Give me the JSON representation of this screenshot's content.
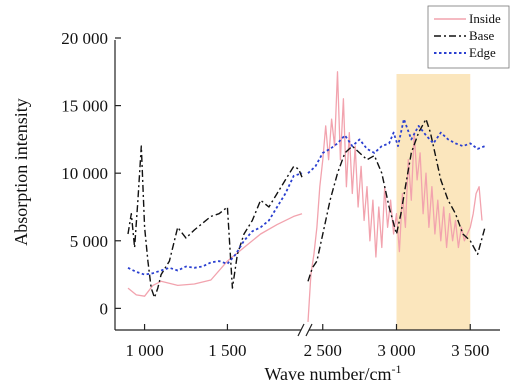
{
  "chart_data": {
    "type": "line",
    "xlabel": "Wave number/cm",
    "xlabel_superscript": "-1",
    "ylabel": "Absorption intensity",
    "ylim": [
      -1600,
      20000
    ],
    "x_axis_broken": true,
    "x_segments": [
      {
        "range": [
          900,
          1950
        ]
      },
      {
        "range": [
          2400,
          3600
        ]
      }
    ],
    "x_ticks": [
      {
        "value": 1000,
        "label": "1 000"
      },
      {
        "value": 1500,
        "label": "1 500"
      },
      {
        "value": 2500,
        "label": "2 500"
      },
      {
        "value": 3000,
        "label": "3 000"
      },
      {
        "value": 3500,
        "label": "3 500"
      }
    ],
    "y_ticks": [
      {
        "value": 0,
        "label": "0"
      },
      {
        "value": 5000,
        "label": "5 000"
      },
      {
        "value": 10000,
        "label": "10 000"
      },
      {
        "value": 15000,
        "label": "15 000"
      },
      {
        "value": 20000,
        "label": "20 000"
      }
    ],
    "highlight_band": {
      "x_range": [
        3000,
        3500
      ],
      "color": "#fbe6bd"
    },
    "legend_position": "top-right",
    "grid": false,
    "series": [
      {
        "name": "Inside",
        "color": "#f2a3ae",
        "dash": "solid",
        "segments": [
          {
            "x": [
              900,
              950,
              1000,
              1050,
              1100,
              1200,
              1300,
              1400,
              1500,
              1600,
              1700,
              1800,
              1900,
              1950
            ],
            "y": [
              1500,
              1000,
              900,
              1700,
              2000,
              1700,
              1800,
              2100,
              3500,
              4500,
              5500,
              6200,
              6800,
              7000
            ]
          },
          {
            "x": [
              2400,
              2420,
              2440,
              2460,
              2480,
              2500,
              2520,
              2540,
              2560,
              2580,
              2600,
              2620,
              2640,
              2660,
              2680,
              2700,
              2720,
              2740,
              2760,
              2780,
              2800,
              2820,
              2840,
              2860,
              2880,
              2900,
              2920,
              2940,
              2960,
              2980,
              3000,
              3020,
              3040,
              3060,
              3080,
              3100,
              3120,
              3140,
              3160,
              3180,
              3200,
              3220,
              3240,
              3260,
              3280,
              3300,
              3320,
              3340,
              3360,
              3380,
              3400,
              3420,
              3440,
              3460,
              3480,
              3500,
              3520,
              3540,
              3560,
              3580
            ],
            "y": [
              -1000,
              2500,
              4000,
              6000,
              9000,
              11000,
              13500,
              11000,
              14000,
              12000,
              17500,
              11000,
              15500,
              9000,
              13000,
              8500,
              12000,
              7500,
              10500,
              6500,
              9000,
              5000,
              8000,
              3800,
              7500,
              4500,
              9000,
              6000,
              8000,
              5500,
              7000,
              4200,
              8500,
              6000,
              11000,
              8000,
              13000,
              9500,
              11500,
              7000,
              10000,
              6000,
              9000,
              5500,
              8000,
              5000,
              7500,
              4500,
              7000,
              5000,
              6500,
              4500,
              6000,
              5000,
              5500,
              6000,
              7000,
              8500,
              9000,
              6500
            ]
          }
        ]
      },
      {
        "name": "Base",
        "color": "#111111",
        "dash": "dashdot",
        "segments": [
          {
            "x": [
              900,
              920,
              940,
              960,
              980,
              1000,
              1020,
              1040,
              1060,
              1080,
              1100,
              1150,
              1200,
              1250,
              1300,
              1350,
              1400,
              1450,
              1500,
              1530,
              1560,
              1600,
              1650,
              1700,
              1750,
              1800,
              1850,
              1900,
              1930,
              1950
            ],
            "y": [
              5500,
              7000,
              4500,
              8000,
              12000,
              6000,
              3500,
              1500,
              800,
              1500,
              2500,
              3500,
              6000,
              5200,
              5800,
              6300,
              6800,
              7000,
              7500,
              1500,
              4000,
              5500,
              6500,
              8000,
              7500,
              8500,
              9500,
              10500,
              10300,
              9700
            ]
          },
          {
            "x": [
              2400,
              2430,
              2460,
              2500,
              2550,
              2600,
              2650,
              2700,
              2750,
              2800,
              2850,
              2900,
              2950,
              3000,
              3030,
              3060,
              3100,
              3150,
              3200,
              3230,
              3260,
              3300,
              3350,
              3400,
              3450,
              3500,
              3550,
              3600
            ],
            "y": [
              2000,
              3000,
              3500,
              5500,
              8000,
              10000,
              11500,
              12000,
              11500,
              11000,
              11300,
              10000,
              7500,
              5500,
              7000,
              9000,
              11500,
              13000,
              14000,
              13000,
              11500,
              9500,
              8000,
              7000,
              5500,
              5000,
              4000,
              6000
            ]
          }
        ]
      },
      {
        "name": "Edge",
        "color": "#2a3fd0",
        "dash": "dot",
        "segments": [
          {
            "x": [
              900,
              950,
              1000,
              1050,
              1100,
              1150,
              1200,
              1250,
              1300,
              1350,
              1400,
              1450,
              1500,
              1550,
              1600,
              1650,
              1700,
              1750,
              1800,
              1850,
              1900,
              1950
            ],
            "y": [
              3000,
              2700,
              2500,
              2600,
              2800,
              3000,
              2800,
              3100,
              3000,
              3100,
              3400,
              3500,
              3300,
              4000,
              5000,
              5700,
              6000,
              6500,
              7500,
              8500,
              9800,
              10000
            ]
          },
          {
            "x": [
              2400,
              2450,
              2500,
              2550,
              2600,
              2650,
              2700,
              2750,
              2800,
              2850,
              2900,
              2950,
              2980,
              3010,
              3050,
              3100,
              3150,
              3200,
              3250,
              3300,
              3350,
              3400,
              3450,
              3500,
              3550,
              3600
            ],
            "y": [
              10000,
              10500,
              11500,
              11800,
              12200,
              12800,
              12000,
              12500,
              11800,
              11500,
              12000,
              12200,
              13000,
              12000,
              14000,
              12500,
              13500,
              12800,
              12200,
              13000,
              12500,
              12200,
              12000,
              12200,
              11800,
              12000
            ]
          }
        ]
      }
    ]
  }
}
